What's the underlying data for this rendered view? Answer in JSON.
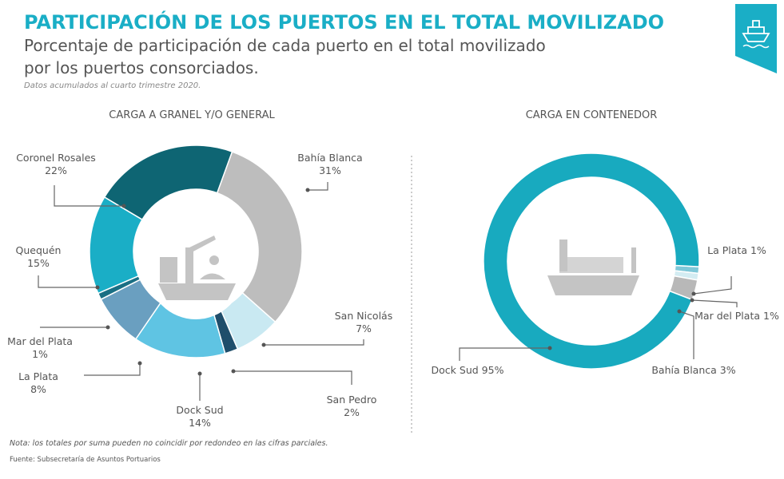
{
  "header": {
    "title": "PARTICIPACIÓN DE LOS PUERTOS EN EL TOTAL MOVILIZADO",
    "subtitle_lines": [
      "Porcentaje de participación de cada puerto en el total movilizado",
      "por los puertos consorciados."
    ],
    "note": "Datos acumulados al cuarto trimestre 2020."
  },
  "chart_data": [
    {
      "type": "donut",
      "title": "CARGA A GRANEL Y/O GENERAL",
      "categories": [
        "Bahía Blanca",
        "San Nicolás",
        "San Pedro",
        "Dock Sud",
        "La Plata",
        "Mar del Plata",
        "Quequén",
        "Coronel Rosales"
      ],
      "values": [
        31,
        7,
        2,
        14,
        8,
        1,
        15,
        22
      ],
      "value_labels": [
        "31%",
        "7%",
        "2%",
        "14%",
        "8%",
        "1%",
        "15%",
        "22%"
      ],
      "colors": [
        "#bdbdbd",
        "#c9e9f2",
        "#1f4e6b",
        "#5fc4e3",
        "#6a9fc0",
        "#1a6f84",
        "#1aaec6",
        "#0e6573"
      ]
    },
    {
      "type": "donut",
      "title": "CARGA EN CONTENEDOR",
      "categories": [
        "La Plata",
        "Mar del Plata",
        "Bahía Blanca",
        "Dock Sud"
      ],
      "values": [
        1,
        1,
        3,
        95
      ],
      "value_labels": [
        "1%",
        "1%",
        "3%",
        "95%"
      ],
      "colors": [
        "#7fc8d8",
        "#d3ecf2",
        "#b8b8b8",
        "#18aabf"
      ]
    }
  ],
  "footer": {
    "note": "Nota: los totales por suma pueden no coincidir por redondeo en las cifras parciales.",
    "source": "Fuente: Subsecretaría de Asuntos Portuarios"
  }
}
